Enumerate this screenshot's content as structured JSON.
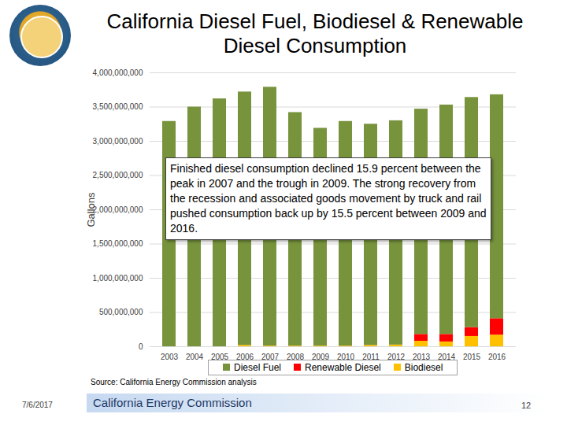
{
  "chart_data": {
    "type": "bar",
    "title": "California Diesel Fuel, Biodiesel & Renewable Diesel Consumption",
    "y_label": "Gallons",
    "annotation": "Finished diesel consumption declined 15.9 percent between the peak in 2007 and the trough in 2009. The strong recovery from the recession and associated goods movement by truck and rail pushed consumption back up by 15.5 percent between 2009 and 2016.",
    "source": "Source: California Energy Commission analysis",
    "footer": {
      "date": "7/6/2017",
      "organization": "California Energy Commission",
      "page": "12"
    },
    "categories": [
      "2003",
      "2004",
      "2005",
      "2006",
      "2007",
      "2008",
      "2009",
      "2010",
      "2011",
      "2012",
      "2013",
      "2014",
      "2015",
      "2016"
    ],
    "series": [
      {
        "name": "Diesel Fuel",
        "color": "#77933c",
        "values": [
          3290000000,
          3500000000,
          3620000000,
          3700000000,
          3780000000,
          3410000000,
          3180000000,
          3280000000,
          3230000000,
          3275000000,
          3290000000,
          3350000000,
          3360000000,
          3270000000
        ]
      },
      {
        "name": "Renewable Diesel",
        "color": "#ff0000",
        "values": [
          0,
          0,
          0,
          0,
          0,
          0,
          0,
          0,
          0,
          0,
          100000000,
          110000000,
          130000000,
          240000000
        ]
      },
      {
        "name": "Biodiesel",
        "color": "#ffc000",
        "values": [
          0,
          0,
          0,
          20000000,
          10000000,
          10000000,
          10000000,
          10000000,
          20000000,
          25000000,
          80000000,
          70000000,
          150000000,
          170000000
        ]
      }
    ],
    "stacked": true,
    "ylim": [
      0,
      4000000000
    ],
    "yticks": [
      0,
      {
        "value": 500000000,
        "label": "500,000,000"
      },
      {
        "value": 1000000000,
        "label": "1,000,000,000"
      },
      {
        "value": 1500000000,
        "label": "1,500,000,000"
      },
      {
        "value": 2000000000,
        "label": "2,000,000,000"
      },
      {
        "value": 2500000000,
        "label": "2,500,000,000"
      },
      {
        "value": 3000000000,
        "label": "3,000,000,000"
      },
      {
        "value": 3500000000,
        "label": "3,500,000,000"
      },
      {
        "value": 4000000000,
        "label": "4,000,000,000"
      }
    ],
    "grid": true,
    "legend": "bottom"
  }
}
